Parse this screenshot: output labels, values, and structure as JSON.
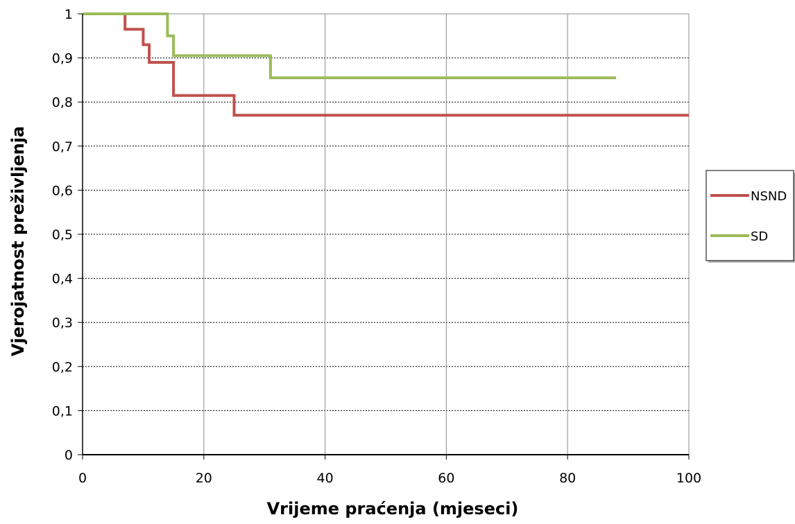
{
  "chart_data": {
    "type": "line",
    "step": true,
    "xlabel": "Vrijeme praćenja (mjeseci)",
    "ylabel": "Vjerojatnost preživljenja",
    "xlim": [
      0,
      100
    ],
    "ylim": [
      0,
      1
    ],
    "x_ticks": [
      0,
      20,
      40,
      60,
      80,
      100
    ],
    "x_tick_labels": [
      "0",
      "20",
      "40",
      "60",
      "80",
      "100"
    ],
    "y_ticks": [
      0,
      0.1,
      0.2,
      0.3,
      0.4,
      0.5,
      0.6,
      0.7,
      0.8,
      0.9,
      1
    ],
    "y_tick_labels": [
      "0",
      "0,1",
      "0,2",
      "0,3",
      "0,4",
      "0,5",
      "0,6",
      "0,7",
      "0,8",
      "0,9",
      "1"
    ],
    "grid": {
      "horizontal": "dotted",
      "vertical": "solid"
    },
    "legend_position": "right",
    "series": [
      {
        "name": "NSND",
        "color": "#C0504D",
        "x": [
          0,
          7,
          7,
          10,
          10,
          11,
          11,
          15,
          15,
          25,
          25,
          100
        ],
        "y": [
          1,
          1,
          0.965,
          0.965,
          0.93,
          0.93,
          0.89,
          0.89,
          0.815,
          0.815,
          0.77,
          0.77
        ]
      },
      {
        "name": "SD",
        "color": "#9BBB59",
        "x": [
          0,
          14,
          14,
          15,
          15,
          31,
          31,
          88
        ],
        "y": [
          1,
          1,
          0.95,
          0.95,
          0.905,
          0.905,
          0.855,
          0.855
        ]
      }
    ]
  }
}
